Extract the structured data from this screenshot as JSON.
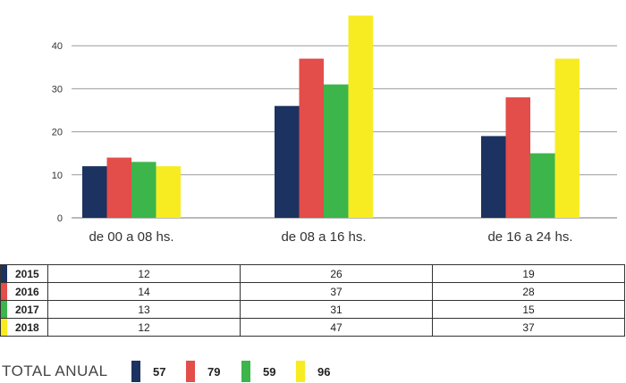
{
  "chart_data": {
    "type": "bar",
    "categories": [
      "de 00 a 08 hs.",
      "de 08 a 16 hs.",
      "de 16 a 24 hs."
    ],
    "series": [
      {
        "name": "2015",
        "color": "#1c3260",
        "values": [
          12,
          26,
          19
        ]
      },
      {
        "name": "2016",
        "color": "#e34d4a",
        "values": [
          14,
          37,
          28
        ]
      },
      {
        "name": "2017",
        "color": "#3cb64a",
        "values": [
          13,
          31,
          15
        ]
      },
      {
        "name": "2018",
        "color": "#f7ec21",
        "values": [
          12,
          47,
          37
        ]
      }
    ],
    "yticks": [
      "0",
      "10",
      "20",
      "30",
      "40"
    ],
    "ylim": [
      0,
      44
    ],
    "grid": true
  },
  "table": {
    "rows": [
      {
        "year": "2015",
        "color": "#1c3260",
        "values": [
          "12",
          "26",
          "19"
        ]
      },
      {
        "year": "2016",
        "color": "#e34d4a",
        "values": [
          "14",
          "37",
          "28"
        ]
      },
      {
        "year": "2017",
        "color": "#3cb64a",
        "values": [
          "13",
          "31",
          "15"
        ]
      },
      {
        "year": "2018",
        "color": "#f7ec21",
        "values": [
          "12",
          "47",
          "37"
        ]
      }
    ]
  },
  "totals": {
    "label": "TOTAL ANUAL",
    "items": [
      {
        "color": "#1c3260",
        "value": "57"
      },
      {
        "color": "#e34d4a",
        "value": "79"
      },
      {
        "color": "#3cb64a",
        "value": "59"
      },
      {
        "color": "#f7ec21",
        "value": "96"
      }
    ]
  }
}
